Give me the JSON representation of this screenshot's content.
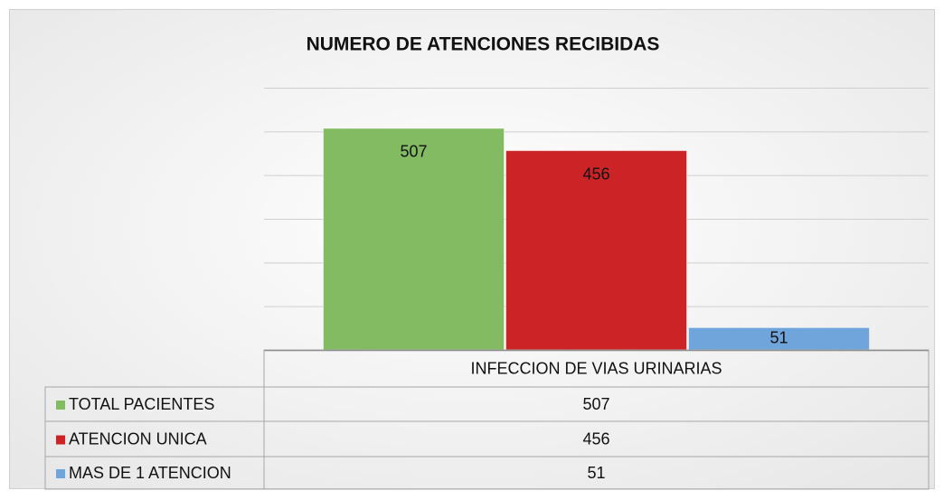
{
  "chart_data": {
    "type": "bar",
    "title": "NUMERO DE ATENCIONES RECIBIDAS",
    "categories": [
      "INFECCION DE VIAS URINARIAS"
    ],
    "series": [
      {
        "name": "TOTAL PACIENTES",
        "color": "#82bb61",
        "values": [
          507
        ]
      },
      {
        "name": "ATENCION UNICA",
        "color": "#cc2426",
        "values": [
          456
        ]
      },
      {
        "name": "MAS DE 1 ATENCION",
        "color": "#70a5dc",
        "values": [
          51
        ]
      }
    ],
    "ylim": [
      0,
      600
    ],
    "yticks": [
      0,
      100,
      200,
      300,
      400,
      500,
      600
    ],
    "grid": true,
    "data_table": true
  }
}
